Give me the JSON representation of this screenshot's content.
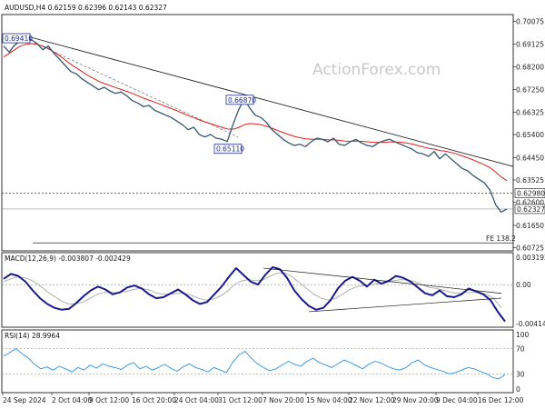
{
  "header": {
    "symbol": "AUDUSD,H4",
    "ohlc": "0.62159 0.62396 0.62143 0.62327"
  },
  "watermark": "ActionForex.com",
  "colors": {
    "price": "#35566e",
    "ema": "#e02020",
    "trendline": "#222222",
    "macd": "#1a1a8c",
    "signal": "#b0b0b0",
    "rsi": "#2a90e0",
    "label_box": "#1c2a8c"
  },
  "chart_data": [
    {
      "type": "line",
      "panel": "price",
      "title": "AUDUSD,H4",
      "x_ticks": [
        "24 Sep 2024",
        "2 Oct 04:00",
        "9 Oct 12:00",
        "16 Oct 20:00",
        "24 Oct 04:00",
        "31 Oct 12:00",
        "7 Nov 20:00",
        "15 Nov 04:00",
        "22 Nov 12:00",
        "29 Nov 20:00",
        "9 Dec 04:00",
        "16 Dec 12:00"
      ],
      "y_ticks": [
        "0.70075",
        "0.69125",
        "0.68200",
        "0.67250",
        "0.66325",
        "0.65400",
        "0.64450",
        "0.63525",
        "0.62600",
        "0.61650",
        "0.60725"
      ],
      "ylim": [
        0.606,
        0.7035
      ],
      "series": [
        {
          "values": [
            0.6905,
            0.688,
            0.691,
            0.6925,
            0.6942,
            0.693,
            0.6915,
            0.689,
            0.6905,
            0.6875,
            0.685,
            0.6825,
            0.68,
            0.679,
            0.677,
            0.6755,
            0.674,
            0.6725,
            0.6735,
            0.672,
            0.671,
            0.6715,
            0.67,
            0.668,
            0.667,
            0.6655,
            0.666,
            0.664,
            0.663,
            0.662,
            0.661,
            0.6595,
            0.658,
            0.656,
            0.657,
            0.654,
            0.653,
            0.654,
            0.6525,
            0.652,
            0.6511,
            0.658,
            0.664,
            0.6687,
            0.665,
            0.662,
            0.661,
            0.659,
            0.656,
            0.654,
            0.652,
            0.6505,
            0.6495,
            0.65,
            0.649,
            0.651,
            0.6525,
            0.652,
            0.651,
            0.6525,
            0.65,
            0.6495,
            0.651,
            0.652,
            0.6505,
            0.6495,
            0.649,
            0.6505,
            0.6515,
            0.652,
            0.651,
            0.65,
            0.649,
            0.648,
            0.6465,
            0.646,
            0.645,
            0.647,
            0.644,
            0.646,
            0.644,
            0.642,
            0.64,
            0.639,
            0.637,
            0.6355,
            0.634,
            0.631,
            0.625,
            0.622,
            0.6233
          ]
        },
        {
          "values": [
            0.686,
            0.6875,
            0.689,
            0.6905,
            0.6912,
            0.6915,
            0.6912,
            0.6905,
            0.6895,
            0.688,
            0.6865,
            0.6848,
            0.683,
            0.6815,
            0.68,
            0.6785,
            0.6772,
            0.676,
            0.675,
            0.6742,
            0.6734,
            0.6726,
            0.6718,
            0.671,
            0.67,
            0.669,
            0.6682,
            0.6674,
            0.6665,
            0.6656,
            0.6647,
            0.6638,
            0.6628,
            0.6618,
            0.661,
            0.66,
            0.6592,
            0.6585,
            0.6577,
            0.657,
            0.6563,
            0.6562,
            0.6568,
            0.658,
            0.6585,
            0.6584,
            0.658,
            0.6574,
            0.6566,
            0.6557,
            0.6548,
            0.654,
            0.6532,
            0.6527,
            0.6522,
            0.652,
            0.652,
            0.652,
            0.6518,
            0.6518,
            0.6516,
            0.6513,
            0.6512,
            0.6513,
            0.6512,
            0.651,
            0.6508,
            0.6507,
            0.6508,
            0.6509,
            0.6509,
            0.6508,
            0.6505,
            0.6501,
            0.6495,
            0.6489,
            0.6483,
            0.648,
            0.6474,
            0.6471,
            0.6466,
            0.646,
            0.6452,
            0.6444,
            0.6435,
            0.6425,
            0.6415,
            0.6403,
            0.6385,
            0.6365,
            0.635
          ]
        }
      ],
      "annotations": [
        {
          "text": "0.69410",
          "value": 0.6941
        },
        {
          "text": "0.66870",
          "value": 0.6687
        },
        {
          "text": "0.65110",
          "value": 0.6511
        },
        {
          "text": "0.62980",
          "value": 0.6298
        },
        {
          "text": "0.62327",
          "value": 0.62327
        },
        {
          "text": "FE 138.2",
          "value": 0.6093
        }
      ]
    },
    {
      "type": "line",
      "panel": "macd",
      "title": "MACD(12,26,9) -0.003807 -0.002429",
      "y_ticks": [
        "0.003192",
        "0.00",
        "-0.00414"
      ],
      "ylim": [
        -0.0044,
        0.0033
      ],
      "series": [
        {
          "values": [
            0.0006,
            0.0011,
            0.0009,
            0.0003,
            -0.0006,
            -0.0014,
            -0.002,
            -0.0024,
            -0.0026,
            -0.0025,
            -0.0019,
            -0.0012,
            -0.0006,
            -0.0002,
            -0.0005,
            -0.001,
            -0.0008,
            -0.0003,
            -0.0001,
            -0.0004,
            -0.001,
            -0.0014,
            -0.0013,
            -0.0009,
            -0.0005,
            -0.001,
            -0.0016,
            -0.002,
            -0.0018,
            -0.001,
            -0.0002,
            0.0008,
            0.0017,
            0.001,
            0.0003,
            0.0,
            0.001,
            0.0018,
            0.0016,
            0.0007,
            -0.0006,
            -0.0015,
            -0.0022,
            -0.0026,
            -0.0024,
            -0.0016,
            -0.0004,
            0.0004,
            0.0008,
            0.0004,
            -0.0002,
            0.0005,
            0.0001,
            0.0004,
            0.0009,
            0.0007,
            0.0003,
            -0.0003,
            -0.0009,
            -0.0011,
            -0.0006,
            -0.0012,
            -0.0013,
            -0.001,
            -0.0004,
            -0.0007,
            -0.001,
            -0.0016,
            -0.0028,
            -0.0038
          ]
        },
        {
          "values": [
            0.0003,
            0.0006,
            0.0008,
            0.0007,
            0.0004,
            -0.0001,
            -0.0007,
            -0.0012,
            -0.0017,
            -0.002,
            -0.002,
            -0.0018,
            -0.0014,
            -0.001,
            -0.0008,
            -0.0008,
            -0.0008,
            -0.0007,
            -0.0005,
            -0.0004,
            -0.0005,
            -0.0008,
            -0.001,
            -0.001,
            -0.0009,
            -0.0009,
            -0.0011,
            -0.0014,
            -0.0016,
            -0.0015,
            -0.0012,
            -0.0007,
            0.0,
            0.0004,
            0.0005,
            0.0004,
            0.0005,
            0.0009,
            0.0012,
            0.0012,
            0.0008,
            0.0002,
            -0.0004,
            -0.001,
            -0.0014,
            -0.0016,
            -0.0014,
            -0.001,
            -0.0005,
            -0.0002,
            -0.0001,
            0.0,
            0.0001,
            0.0002,
            0.0004,
            0.0005,
            0.0005,
            0.0003,
            0.0,
            -0.0003,
            -0.0004,
            -0.0006,
            -0.0008,
            -0.0009,
            -0.0008,
            -0.0008,
            -0.0008,
            -0.001,
            -0.0015,
            -0.0024
          ]
        }
      ]
    },
    {
      "type": "line",
      "panel": "rsi",
      "title": "RSI(14) 28.9964",
      "y_ticks": [
        "100",
        "70",
        "30",
        "0"
      ],
      "ylim": [
        0,
        100
      ],
      "series": [
        {
          "values": [
            58,
            64,
            70,
            62,
            55,
            45,
            38,
            41,
            36,
            42,
            38,
            33,
            40,
            36,
            44,
            39,
            46,
            42,
            40,
            37,
            44,
            48,
            38,
            42,
            36,
            40,
            45,
            39,
            34,
            41,
            46,
            40,
            37,
            33,
            40,
            36,
            32,
            48,
            60,
            66,
            55,
            46,
            40,
            35,
            38,
            44,
            50,
            45,
            42,
            50,
            55,
            48,
            44,
            40,
            46,
            52,
            48,
            43,
            38,
            45,
            50,
            47,
            42,
            38,
            36,
            40,
            48,
            52,
            44,
            40,
            37,
            34,
            30,
            32,
            36,
            40,
            38,
            34,
            30,
            24,
            22,
            29
          ]
        }
      ]
    }
  ]
}
